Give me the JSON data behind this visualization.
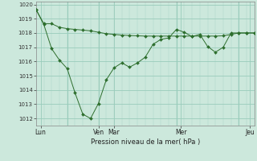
{
  "xlabel": "Pression niveau de la mer( hPa )",
  "bg_color": "#cce8dc",
  "grid_color": "#99ccbb",
  "line_color": "#2d6e2d",
  "ylim": [
    1011.5,
    1020.2
  ],
  "yticks": [
    1012,
    1013,
    1014,
    1015,
    1016,
    1017,
    1018,
    1019,
    1020
  ],
  "xlim": [
    0,
    14
  ],
  "line1_x": [
    0,
    0.5,
    1.0,
    1.5,
    2.0,
    2.5,
    3.0,
    3.5,
    4.0,
    4.5,
    5.0,
    5.5,
    6.0,
    6.5,
    7.0,
    7.5,
    8.0,
    8.5,
    9.0,
    9.5,
    10.0,
    10.5,
    11.0,
    11.5,
    12.0,
    12.5,
    13.0,
    13.5,
    14.0
  ],
  "line1_y": [
    1019.65,
    1018.65,
    1018.65,
    1018.4,
    1018.3,
    1018.25,
    1018.2,
    1018.15,
    1018.05,
    1017.95,
    1017.9,
    1017.85,
    1017.82,
    1017.8,
    1017.78,
    1017.78,
    1017.78,
    1017.78,
    1017.78,
    1017.78,
    1017.78,
    1017.78,
    1017.78,
    1017.78,
    1017.8,
    1017.9,
    1018.0,
    1018.0,
    1018.0
  ],
  "line2_x": [
    0,
    0.5,
    1.0,
    1.5,
    2.0,
    2.5,
    3.0,
    3.5,
    4.0,
    4.5,
    5.0,
    5.5,
    6.0,
    6.5,
    7.0,
    7.5,
    8.0,
    8.5,
    9.0,
    9.5,
    10.0,
    10.5,
    11.0,
    11.5,
    12.0,
    12.5,
    13.0,
    13.5,
    14.0
  ],
  "line2_y": [
    1019.65,
    1018.6,
    1016.9,
    1016.1,
    1015.5,
    1013.8,
    1012.3,
    1012.0,
    1013.05,
    1014.7,
    1015.55,
    1015.9,
    1015.6,
    1015.9,
    1016.3,
    1017.2,
    1017.55,
    1017.65,
    1018.25,
    1018.05,
    1017.75,
    1017.9,
    1017.05,
    1016.65,
    1017.0,
    1018.0,
    1018.0,
    1018.0,
    1018.0
  ],
  "vlines_x": [
    2.0,
    4.0,
    9.0,
    13.0
  ],
  "day_positions": [
    0.3,
    4.0,
    5.0,
    9.3,
    13.7
  ],
  "day_labels": [
    "Lun",
    "Ven",
    "Mar",
    "Mer",
    "Jeu"
  ]
}
